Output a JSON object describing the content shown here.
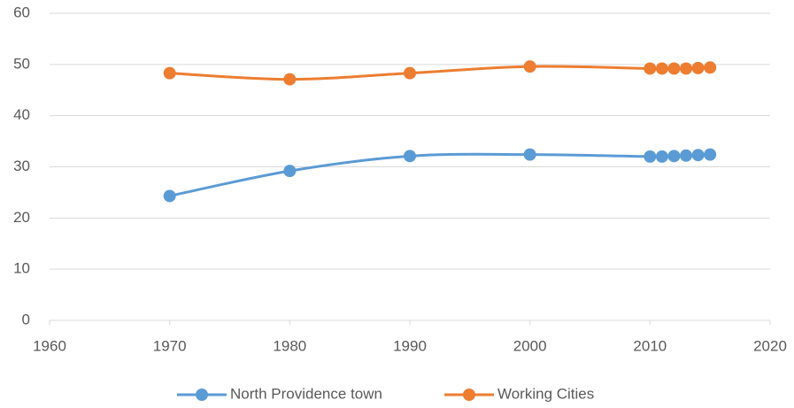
{
  "chart_data": {
    "type": "line",
    "x": [
      1970,
      1980,
      1990,
      2000,
      2010,
      2011,
      2012,
      2013,
      2014,
      2015
    ],
    "series": [
      {
        "name": "North Providence town",
        "color": "#5b9bd5",
        "values": [
          24.3,
          29.2,
          32.1,
          32.4,
          32.0,
          32.0,
          32.1,
          32.2,
          32.3,
          32.4
        ]
      },
      {
        "name": "Working Cities",
        "color": "#ed7d31",
        "values": [
          48.3,
          47.1,
          48.3,
          49.6,
          49.2,
          49.2,
          49.2,
          49.2,
          49.3,
          49.4
        ]
      }
    ],
    "xlim": [
      1960,
      2020
    ],
    "xticks": [
      1960,
      1970,
      1980,
      1990,
      2000,
      2010,
      2020
    ],
    "ylim": [
      0,
      60
    ],
    "yticks": [
      0,
      10,
      20,
      30,
      40,
      50,
      60
    ],
    "grid": true,
    "legend": "bottom"
  }
}
